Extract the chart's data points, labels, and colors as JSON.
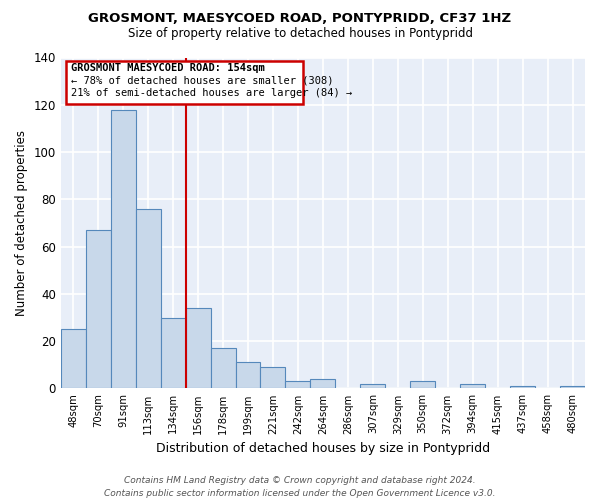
{
  "title1": "GROSMONT, MAESYCOED ROAD, PONTYPRIDD, CF37 1HZ",
  "title2": "Size of property relative to detached houses in Pontypridd",
  "xlabel": "Distribution of detached houses by size in Pontypridd",
  "ylabel": "Number of detached properties",
  "bin_labels": [
    "48sqm",
    "70sqm",
    "91sqm",
    "113sqm",
    "134sqm",
    "156sqm",
    "178sqm",
    "199sqm",
    "221sqm",
    "242sqm",
    "264sqm",
    "286sqm",
    "307sqm",
    "329sqm",
    "350sqm",
    "372sqm",
    "394sqm",
    "415sqm",
    "437sqm",
    "458sqm",
    "480sqm"
  ],
  "bar_values": [
    25,
    67,
    118,
    76,
    30,
    34,
    17,
    11,
    9,
    3,
    4,
    0,
    2,
    0,
    3,
    0,
    2,
    0,
    1,
    0,
    1
  ],
  "bar_color": "#c8d8ea",
  "bar_edge_color": "#5588bb",
  "highlight_line_color": "#cc0000",
  "annotation_title": "GROSMONT MAESYCOED ROAD: 154sqm",
  "annotation_line1": "← 78% of detached houses are smaller (308)",
  "annotation_line2": "21% of semi-detached houses are larger (84) →",
  "annotation_box_color": "#cc0000",
  "ylim": [
    0,
    140
  ],
  "yticks": [
    0,
    20,
    40,
    60,
    80,
    100,
    120,
    140
  ],
  "footer": "Contains HM Land Registry data © Crown copyright and database right 2024.\nContains public sector information licensed under the Open Government Licence v3.0.",
  "background_color": "#eef2f8",
  "plot_bg_color": "#e8eef8"
}
